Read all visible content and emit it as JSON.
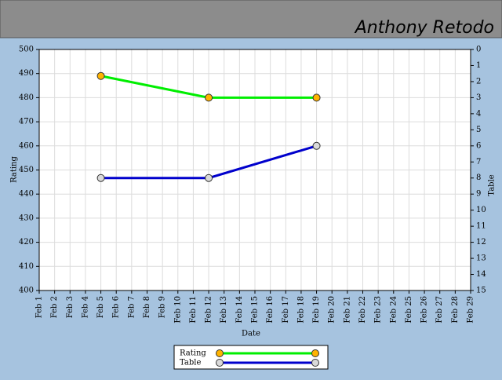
{
  "header": {
    "title": "Anthony Retodo"
  },
  "chart_data": {
    "type": "line",
    "x_label": "Date",
    "y_label": "Rating",
    "y2_label": "Table",
    "categories": [
      "Feb 1",
      "Feb 2",
      "Feb 3",
      "Feb 4",
      "Feb 5",
      "Feb 6",
      "Feb 7",
      "Feb 8",
      "Feb 9",
      "Feb 10",
      "Feb 11",
      "Feb 12",
      "Feb 13",
      "Feb 14",
      "Feb 15",
      "Feb 16",
      "Feb 17",
      "Feb 18",
      "Feb 19",
      "Feb 20",
      "Feb 21",
      "Feb 22",
      "Feb 23",
      "Feb 24",
      "Feb 25",
      "Feb 26",
      "Feb 27",
      "Feb 28",
      "Feb 29"
    ],
    "ylim": [
      400,
      500
    ],
    "yticks": [
      400,
      410,
      420,
      430,
      440,
      450,
      460,
      470,
      480,
      490,
      500
    ],
    "y2lim": [
      15,
      0
    ],
    "y2ticks": [
      0,
      1,
      2,
      3,
      4,
      5,
      6,
      7,
      8,
      9,
      10,
      11,
      12,
      13,
      14,
      15
    ],
    "grid": true,
    "series": [
      {
        "name": "Rating",
        "color": "#00ee00",
        "marker_color": "#ffb300",
        "x": [
          "Feb 5",
          "Feb 12",
          "Feb 19"
        ],
        "values": [
          489,
          480,
          480
        ]
      },
      {
        "name": "Table",
        "color": "#0000cc",
        "marker_color": "#d9d9d9",
        "axis": "y2",
        "x": [
          "Feb 5",
          "Feb 12",
          "Feb 19"
        ],
        "values": [
          8,
          8,
          6
        ]
      }
    ]
  }
}
